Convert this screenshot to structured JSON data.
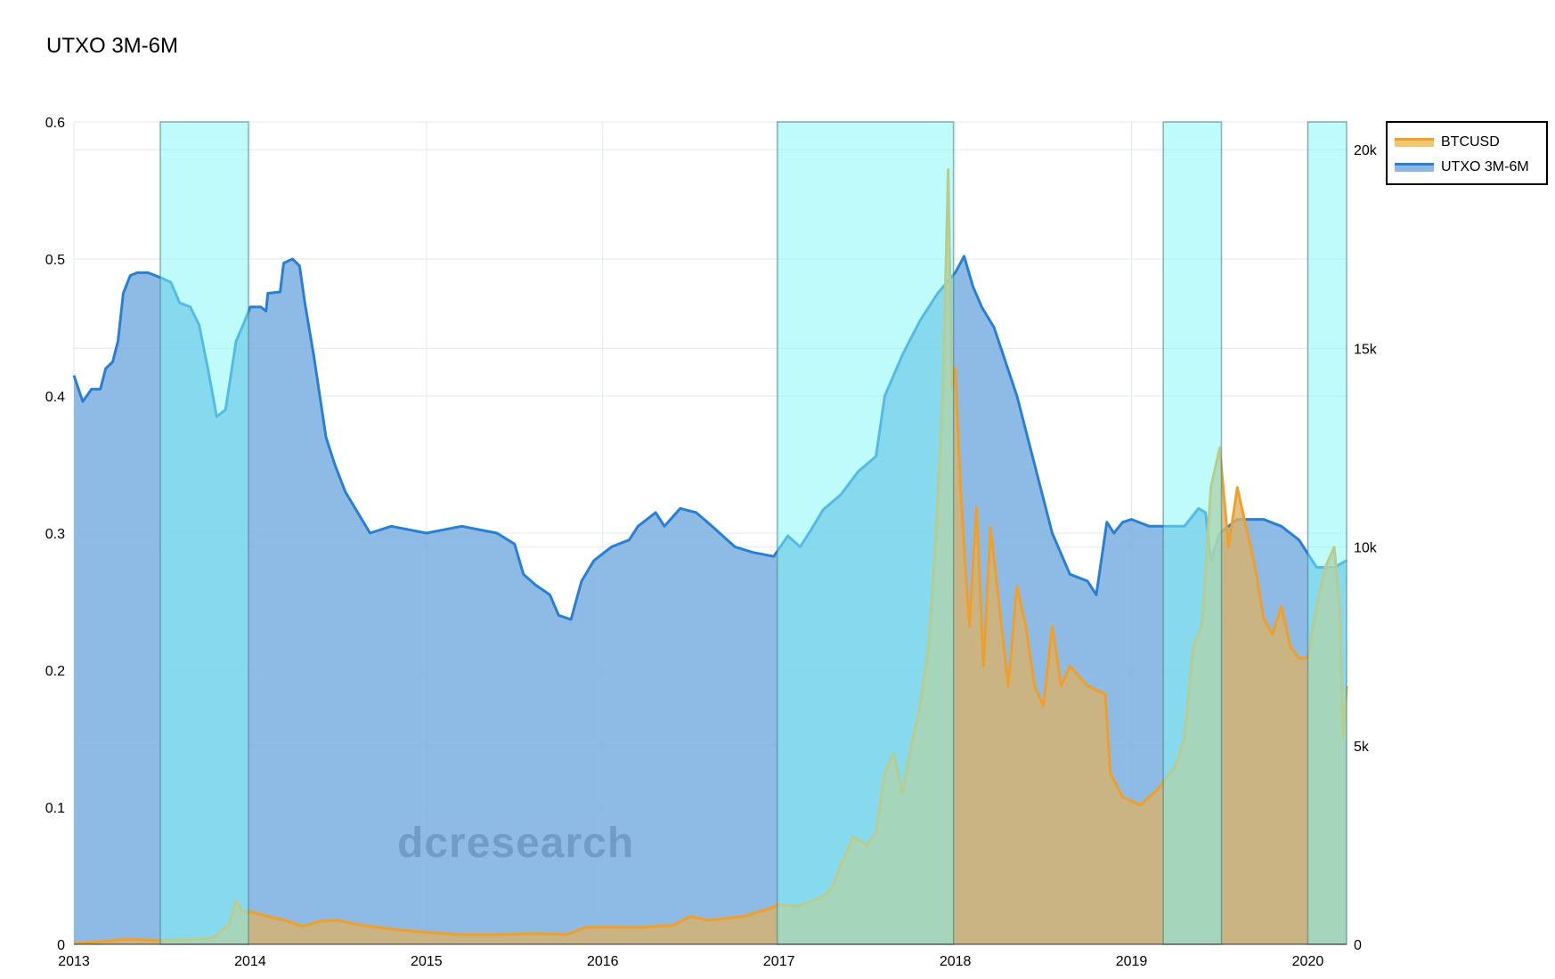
{
  "title": "UTXO 3M-6M",
  "watermark": "dcresearch",
  "legend": {
    "items": [
      {
        "label": "BTCUSD",
        "color": "#f5a623"
      },
      {
        "label": "UTXO 3M-6M",
        "color": "#2a7fd4"
      }
    ]
  },
  "colors": {
    "utxo_line": "#2a7fd4",
    "utxo_fill": "#7aafe0",
    "btc_line": "#f0a02a",
    "btc_fill": "#d9b36a",
    "highlight": "#7ff7f5",
    "grid": "#e2e8f2"
  },
  "chart_data": {
    "type": "area",
    "title": "UTXO 3M-6M",
    "x_range": [
      2013.0,
      2020.22
    ],
    "x_ticks": [
      "2013",
      "2014",
      "2015",
      "2016",
      "2017",
      "2018",
      "2019",
      "2020"
    ],
    "y_left": {
      "range": [
        0,
        0.6
      ],
      "ticks": [
        "0",
        "0.1",
        "0.2",
        "0.3",
        "0.4",
        "0.5",
        "0.6"
      ]
    },
    "y_right": {
      "range": [
        0,
        20700
      ],
      "ticks": [
        "0",
        "5k",
        "10k",
        "15k",
        "20k"
      ]
    },
    "highlight_regions": [
      [
        2013.49,
        2013.99
      ],
      [
        2016.99,
        2017.99
      ],
      [
        2019.18,
        2019.51
      ],
      [
        2020.0,
        2020.23
      ]
    ],
    "grid": true,
    "legend_position": "top-right",
    "series": [
      {
        "name": "UTXO 3M-6M",
        "axis": "left",
        "points": [
          [
            2013.0,
            0.415
          ],
          [
            2013.05,
            0.396
          ],
          [
            2013.1,
            0.405
          ],
          [
            2013.15,
            0.405
          ],
          [
            2013.18,
            0.42
          ],
          [
            2013.22,
            0.425
          ],
          [
            2013.25,
            0.44
          ],
          [
            2013.28,
            0.475
          ],
          [
            2013.32,
            0.488
          ],
          [
            2013.36,
            0.49
          ],
          [
            2013.42,
            0.49
          ],
          [
            2013.5,
            0.486
          ],
          [
            2013.55,
            0.483
          ],
          [
            2013.6,
            0.468
          ],
          [
            2013.66,
            0.465
          ],
          [
            2013.71,
            0.452
          ],
          [
            2013.76,
            0.42
          ],
          [
            2013.81,
            0.385
          ],
          [
            2013.86,
            0.39
          ],
          [
            2013.92,
            0.44
          ],
          [
            2013.97,
            0.455
          ],
          [
            2014.0,
            0.465
          ],
          [
            2014.06,
            0.465
          ],
          [
            2014.09,
            0.462
          ],
          [
            2014.1,
            0.475
          ],
          [
            2014.17,
            0.476
          ],
          [
            2014.19,
            0.497
          ],
          [
            2014.24,
            0.5
          ],
          [
            2014.28,
            0.495
          ],
          [
            2014.31,
            0.468
          ],
          [
            2014.36,
            0.43
          ],
          [
            2014.43,
            0.37
          ],
          [
            2014.48,
            0.35
          ],
          [
            2014.54,
            0.33
          ],
          [
            2014.68,
            0.3
          ],
          [
            2014.8,
            0.305
          ],
          [
            2015.0,
            0.3
          ],
          [
            2015.2,
            0.305
          ],
          [
            2015.4,
            0.3
          ],
          [
            2015.5,
            0.292
          ],
          [
            2015.55,
            0.27
          ],
          [
            2015.62,
            0.262
          ],
          [
            2015.7,
            0.255
          ],
          [
            2015.75,
            0.24
          ],
          [
            2015.82,
            0.237
          ],
          [
            2015.88,
            0.265
          ],
          [
            2015.95,
            0.28
          ],
          [
            2016.05,
            0.29
          ],
          [
            2016.15,
            0.295
          ],
          [
            2016.2,
            0.305
          ],
          [
            2016.3,
            0.315
          ],
          [
            2016.35,
            0.305
          ],
          [
            2016.44,
            0.318
          ],
          [
            2016.53,
            0.315
          ],
          [
            2016.62,
            0.305
          ],
          [
            2016.75,
            0.29
          ],
          [
            2016.85,
            0.286
          ],
          [
            2016.97,
            0.283
          ],
          [
            2017.05,
            0.298
          ],
          [
            2017.12,
            0.29
          ],
          [
            2017.18,
            0.302
          ],
          [
            2017.25,
            0.317
          ],
          [
            2017.35,
            0.328
          ],
          [
            2017.45,
            0.345
          ],
          [
            2017.55,
            0.356
          ],
          [
            2017.6,
            0.4
          ],
          [
            2017.7,
            0.43
          ],
          [
            2017.8,
            0.455
          ],
          [
            2017.9,
            0.475
          ],
          [
            2018.0,
            0.49
          ],
          [
            2018.05,
            0.502
          ],
          [
            2018.1,
            0.48
          ],
          [
            2018.15,
            0.465
          ],
          [
            2018.22,
            0.45
          ],
          [
            2018.35,
            0.4
          ],
          [
            2018.45,
            0.35
          ],
          [
            2018.55,
            0.3
          ],
          [
            2018.65,
            0.27
          ],
          [
            2018.75,
            0.265
          ],
          [
            2018.8,
            0.255
          ],
          [
            2018.86,
            0.308
          ],
          [
            2018.9,
            0.3
          ],
          [
            2018.95,
            0.308
          ],
          [
            2019.0,
            0.31
          ],
          [
            2019.1,
            0.305
          ],
          [
            2019.2,
            0.305
          ],
          [
            2019.3,
            0.305
          ],
          [
            2019.38,
            0.318
          ],
          [
            2019.42,
            0.315
          ],
          [
            2019.45,
            0.28
          ],
          [
            2019.5,
            0.3
          ],
          [
            2019.6,
            0.31
          ],
          [
            2019.75,
            0.31
          ],
          [
            2019.85,
            0.305
          ],
          [
            2019.95,
            0.295
          ],
          [
            2020.05,
            0.275
          ],
          [
            2020.15,
            0.275
          ],
          [
            2020.22,
            0.28
          ]
        ]
      },
      {
        "name": "BTCUSD",
        "axis": "right",
        "points": [
          [
            2013.0,
            20
          ],
          [
            2013.2,
            80
          ],
          [
            2013.3,
            130
          ],
          [
            2013.4,
            110
          ],
          [
            2013.5,
            90
          ],
          [
            2013.7,
            130
          ],
          [
            2013.8,
            180
          ],
          [
            2013.88,
            500
          ],
          [
            2013.92,
            1100
          ],
          [
            2013.96,
            800
          ],
          [
            2014.0,
            820
          ],
          [
            2014.1,
            700
          ],
          [
            2014.2,
            600
          ],
          [
            2014.3,
            450
          ],
          [
            2014.4,
            580
          ],
          [
            2014.5,
            600
          ],
          [
            2014.6,
            500
          ],
          [
            2014.8,
            380
          ],
          [
            2015.0,
            300
          ],
          [
            2015.2,
            240
          ],
          [
            2015.4,
            240
          ],
          [
            2015.6,
            270
          ],
          [
            2015.8,
            250
          ],
          [
            2015.9,
            420
          ],
          [
            2016.0,
            430
          ],
          [
            2016.2,
            420
          ],
          [
            2016.4,
            480
          ],
          [
            2016.5,
            700
          ],
          [
            2016.6,
            600
          ],
          [
            2016.8,
            700
          ],
          [
            2016.95,
            900
          ],
          [
            2017.0,
            1000
          ],
          [
            2017.1,
            950
          ],
          [
            2017.2,
            1100
          ],
          [
            2017.25,
            1200
          ],
          [
            2017.3,
            1400
          ],
          [
            2017.35,
            2000
          ],
          [
            2017.42,
            2700
          ],
          [
            2017.5,
            2500
          ],
          [
            2017.55,
            2800
          ],
          [
            2017.6,
            4300
          ],
          [
            2017.65,
            4800
          ],
          [
            2017.7,
            3800
          ],
          [
            2017.75,
            5000
          ],
          [
            2017.8,
            6000
          ],
          [
            2017.85,
            7500
          ],
          [
            2017.9,
            11000
          ],
          [
            2017.93,
            14000
          ],
          [
            2017.96,
            19500
          ],
          [
            2017.98,
            14000
          ],
          [
            2018.0,
            14500
          ],
          [
            2018.03,
            11500
          ],
          [
            2018.05,
            10000
          ],
          [
            2018.08,
            8000
          ],
          [
            2018.12,
            11000
          ],
          [
            2018.16,
            7000
          ],
          [
            2018.2,
            10500
          ],
          [
            2018.25,
            8500
          ],
          [
            2018.3,
            6500
          ],
          [
            2018.35,
            9000
          ],
          [
            2018.4,
            8000
          ],
          [
            2018.45,
            6500
          ],
          [
            2018.5,
            6000
          ],
          [
            2018.55,
            8000
          ],
          [
            2018.6,
            6500
          ],
          [
            2018.65,
            7000
          ],
          [
            2018.75,
            6500
          ],
          [
            2018.85,
            6300
          ],
          [
            2018.88,
            4300
          ],
          [
            2018.95,
            3700
          ],
          [
            2019.05,
            3500
          ],
          [
            2019.15,
            3900
          ],
          [
            2019.25,
            4500
          ],
          [
            2019.3,
            5200
          ],
          [
            2019.35,
            7500
          ],
          [
            2019.4,
            8000
          ],
          [
            2019.45,
            11500
          ],
          [
            2019.5,
            12500
          ],
          [
            2019.55,
            10000
          ],
          [
            2019.6,
            11500
          ],
          [
            2019.65,
            10500
          ],
          [
            2019.7,
            9500
          ],
          [
            2019.75,
            8200
          ],
          [
            2019.8,
            7800
          ],
          [
            2019.85,
            8500
          ],
          [
            2019.9,
            7500
          ],
          [
            2019.95,
            7200
          ],
          [
            2020.0,
            7200
          ],
          [
            2020.05,
            8500
          ],
          [
            2020.1,
            9500
          ],
          [
            2020.15,
            10000
          ],
          [
            2020.18,
            8500
          ],
          [
            2020.2,
            5200
          ],
          [
            2020.22,
            6500
          ]
        ]
      }
    ]
  }
}
